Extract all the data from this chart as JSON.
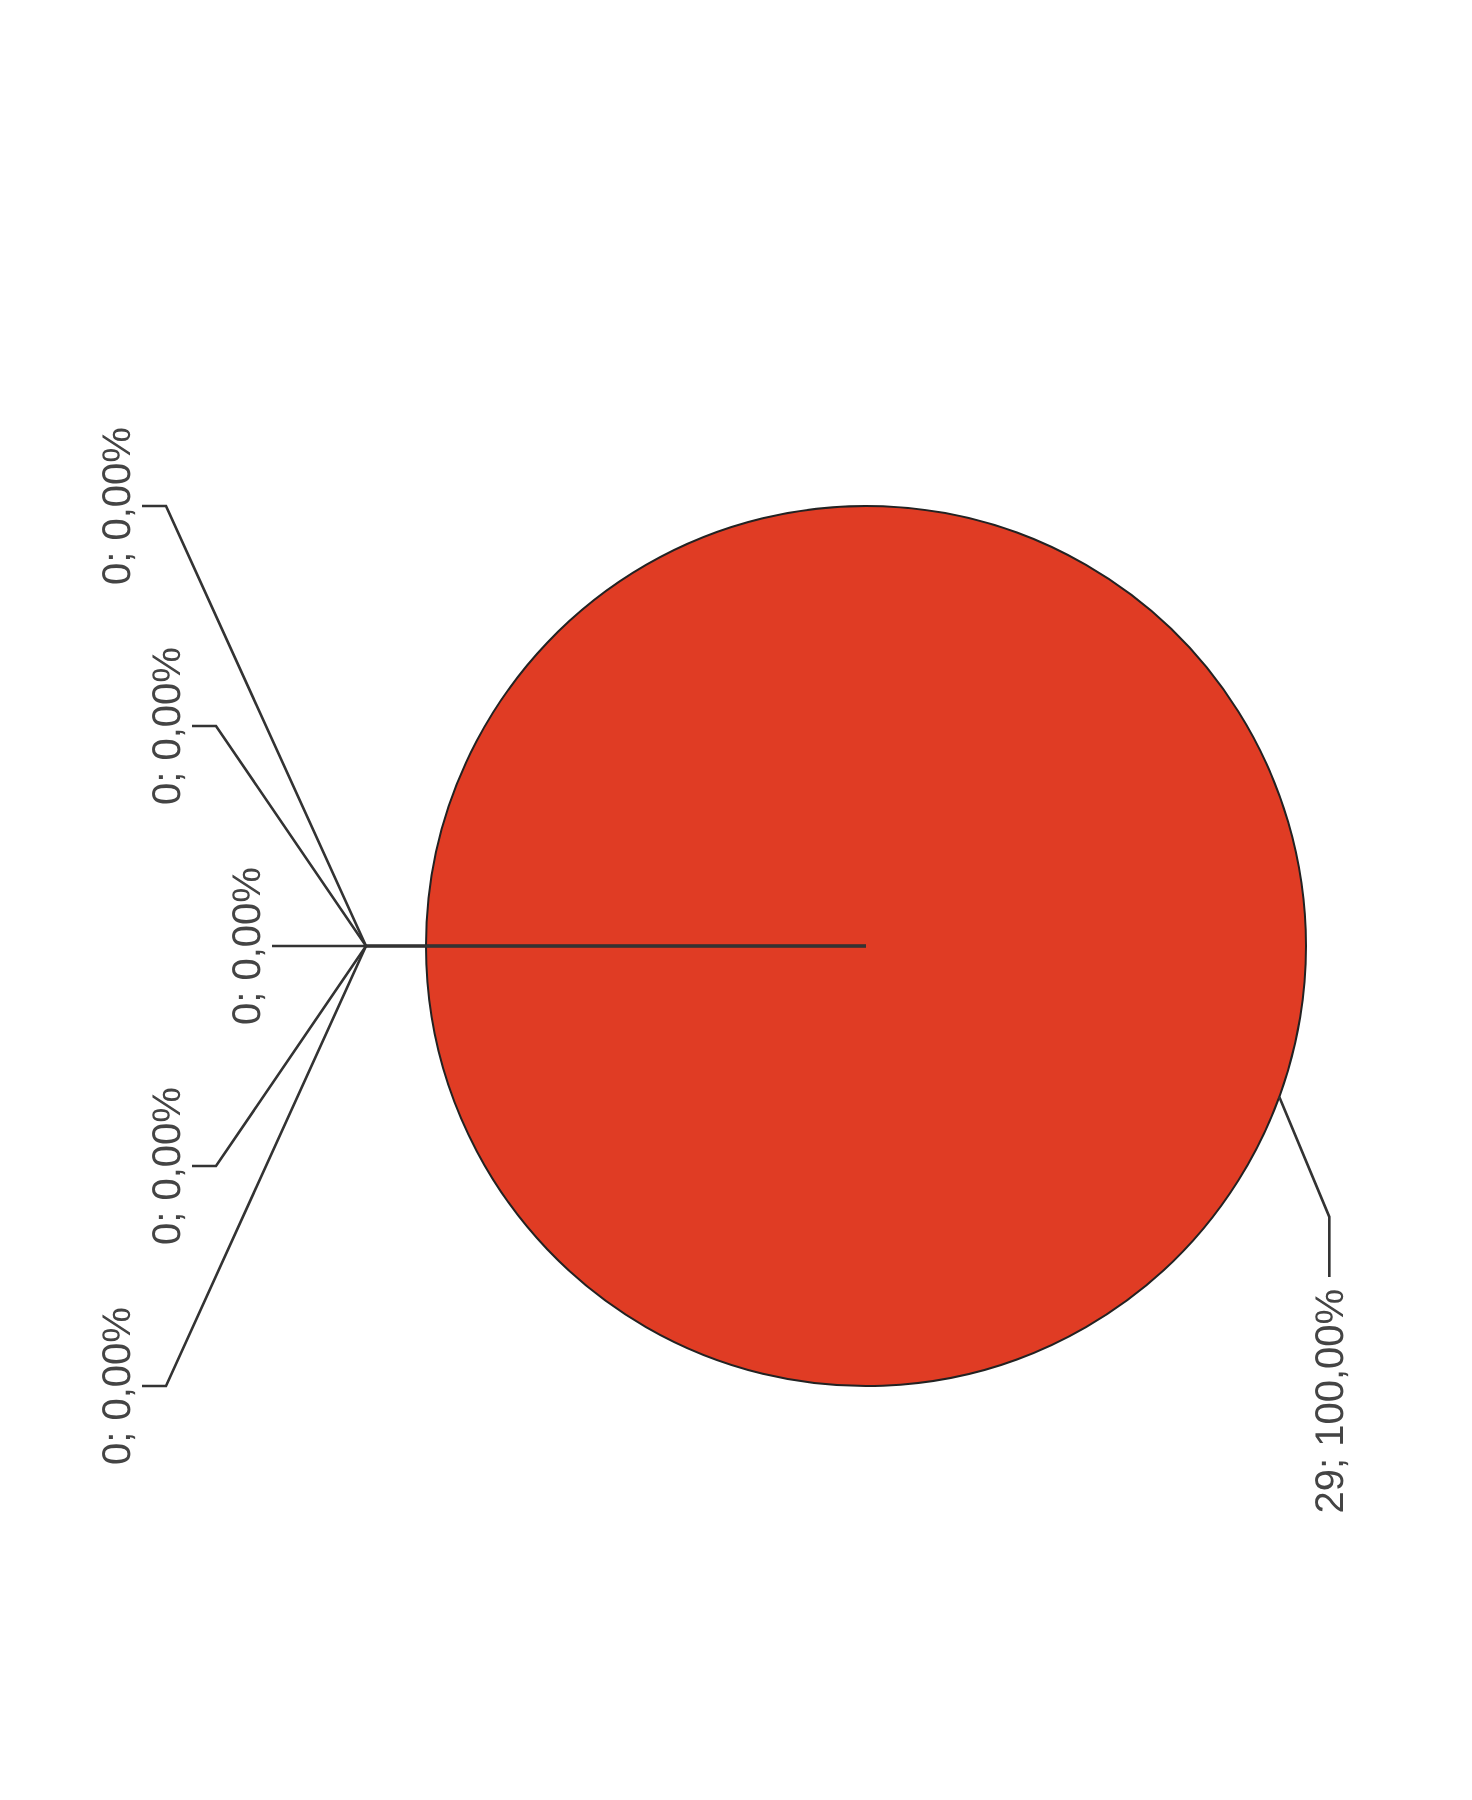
{
  "chart_data": {
    "type": "pie",
    "categories": [
      null,
      null,
      null,
      null,
      null,
      null
    ],
    "values": [
      0,
      0,
      0,
      0,
      0,
      29
    ],
    "value_labels": [
      "0; 0,00%",
      "0; 0,00%",
      "0; 0,00%",
      "0; 0,00%",
      "0; 0,00%",
      "29; 100,00%"
    ],
    "colors": [
      "#4a7ebb",
      "#9bbb59",
      "#8064a2",
      "#4bacc6",
      "#f79646",
      "#e03c24"
    ],
    "legend": false
  }
}
